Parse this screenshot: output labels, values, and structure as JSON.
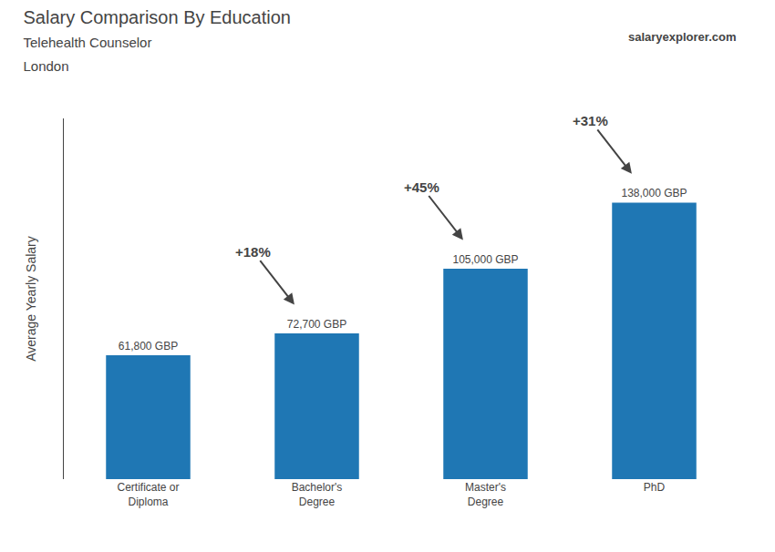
{
  "chart_data": {
    "type": "bar",
    "title": "Salary Comparison By Education",
    "subtitle": [
      "Telehealth Counselor",
      "London"
    ],
    "ylabel": "Average Yearly Salary",
    "categories": [
      "Certificate or\nDiploma",
      "Bachelor's\nDegree",
      "Master's\nDegree",
      "PhD"
    ],
    "values": [
      61800,
      72700,
      105000,
      138000
    ],
    "value_labels": [
      "61,800 GBP",
      "72,700 GBP",
      "105,000 GBP",
      "138,000 GBP"
    ],
    "data_labels": true,
    "ylim": [
      0,
      180000
    ],
    "grid": false,
    "tick_labels": "x",
    "annotations": [
      {
        "text": "+18%",
        "from": "Certificate or\nDiploma",
        "to": "Bachelor's\nDegree"
      },
      {
        "text": "+45%",
        "from": "Bachelor's\nDegree",
        "to": "Master's\nDegree"
      },
      {
        "text": "+31%",
        "from": "Master's\nDegree",
        "to": "PhD"
      },
      {
        "text": "salaryexplorer.com"
      }
    ]
  }
}
